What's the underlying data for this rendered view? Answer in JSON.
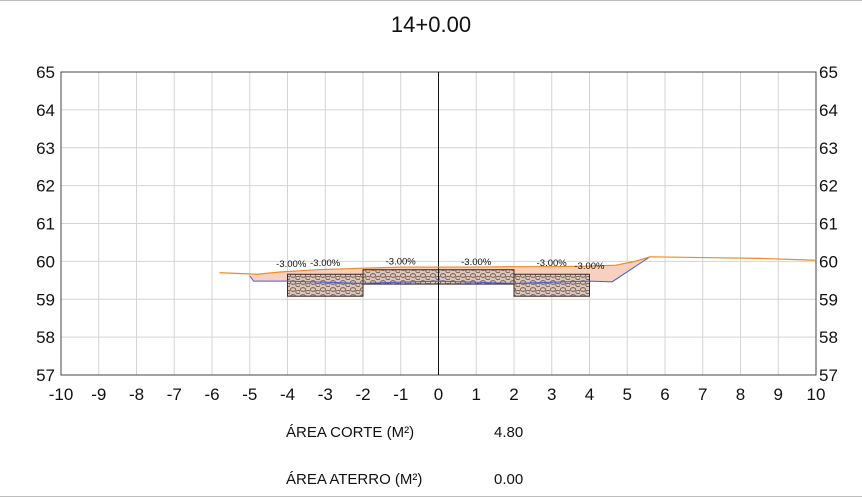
{
  "title": "14+0.00",
  "chart_data": {
    "type": "line",
    "title": "14+0.00",
    "xlim": [
      -10,
      10
    ],
    "ylim": [
      57,
      65
    ],
    "x_ticks": [
      -10,
      -9,
      -8,
      -7,
      -6,
      -5,
      -4,
      -3,
      -2,
      -1,
      0,
      1,
      2,
      3,
      4,
      5,
      6,
      7,
      8,
      9,
      10
    ],
    "y_ticks": [
      57,
      58,
      59,
      60,
      61,
      62,
      63,
      64,
      65
    ],
    "grid": true,
    "series": [
      {
        "role": "terrain",
        "color": "#f08a24",
        "x": [
          -5.8,
          -4.8,
          -4.2,
          -3.2,
          -2.0,
          -1.0,
          0.0,
          1.0,
          2.0,
          3.0,
          3.8,
          4.7,
          5.2,
          5.6,
          7.0,
          8.5,
          10.0
        ],
        "y": [
          59.7,
          59.66,
          59.72,
          59.78,
          59.82,
          59.85,
          59.85,
          59.85,
          59.86,
          59.86,
          59.87,
          59.9,
          60.0,
          60.12,
          60.1,
          60.08,
          60.03
        ]
      },
      {
        "role": "subgrade",
        "color": "#4a5bd6",
        "x": [
          -5.0,
          -4.9,
          -4.0,
          -2.0,
          0.0,
          2.0,
          4.0,
          4.6,
          5.6
        ],
        "y": [
          59.62,
          59.48,
          59.48,
          59.42,
          59.48,
          59.42,
          59.48,
          59.46,
          60.12
        ]
      }
    ],
    "pavement_layers": [
      {
        "x_from": -4.0,
        "x_to": -2.0,
        "top": 59.66,
        "bottom": 59.08
      },
      {
        "x_from": -2.0,
        "x_to": 2.0,
        "top": 59.78,
        "bottom": 59.4
      },
      {
        "x_from": 2.0,
        "x_to": 4.0,
        "top": 59.66,
        "bottom": 59.08
      }
    ],
    "centerline_x": 0,
    "slope_labels": [
      {
        "text": "-3.00%",
        "x": -4.3,
        "y": 59.85
      },
      {
        "text": "-3.00%",
        "x": -3.4,
        "y": 59.88
      },
      {
        "text": "-3.00%",
        "x": -1.4,
        "y": 59.92
      },
      {
        "text": "-3.00%",
        "x": 0.6,
        "y": 59.9
      },
      {
        "text": "-3.00%",
        "x": 2.6,
        "y": 59.88
      },
      {
        "text": "-3.00%",
        "x": 3.6,
        "y": 59.8
      }
    ],
    "cut_fill_color": "#f6cbb8"
  },
  "areas": {
    "corte_label": "ÁREA CORTE (M²)",
    "corte_value": "4.80",
    "aterro_label": "ÁREA ATERRO (M²)",
    "aterro_value": "0.00"
  }
}
